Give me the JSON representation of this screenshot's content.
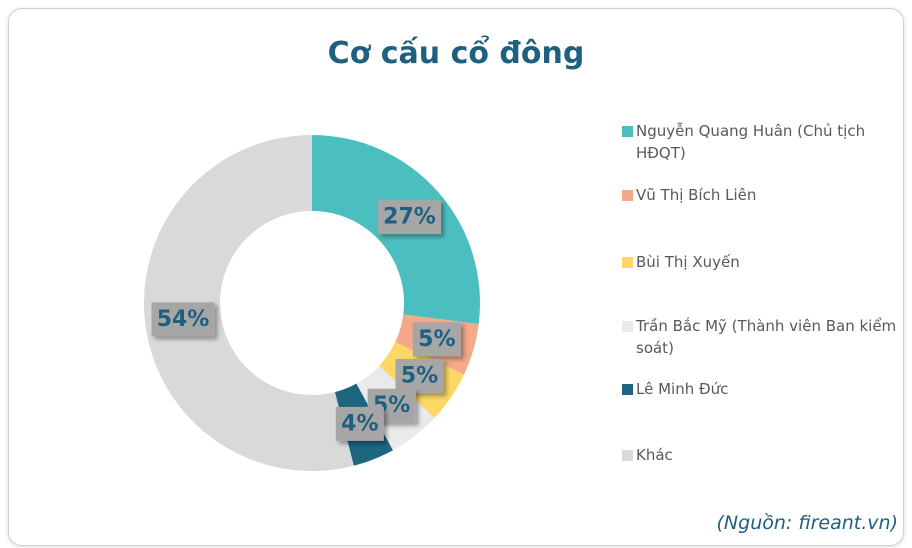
{
  "chart_data": {
    "type": "donut",
    "title": "Cơ cấu cổ đông",
    "categories": [
      "Nguyễn Quang Huân (Chủ tịch HĐQT)",
      "Vũ Thị Bích Liên",
      "Bùi Thị Xuyến",
      "Trần Bắc Mỹ (Thành viên Ban kiểm soát)",
      "Lê Minh Đức",
      "Khác"
    ],
    "values": [
      27,
      5,
      5,
      5,
      4,
      54
    ],
    "value_labels": [
      "27%",
      "5%",
      "5%",
      "5%",
      "4%",
      "54%"
    ],
    "colors": [
      "#4bbfc0",
      "#f4a98a",
      "#fcd766",
      "#eaeaea",
      "#1e6680",
      "#d9d9d9"
    ],
    "legend": "right",
    "source": "(Nguồn: fireant.vn)"
  }
}
